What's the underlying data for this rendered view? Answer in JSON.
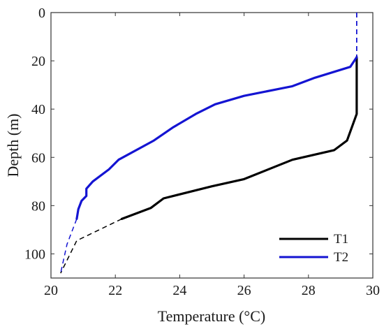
{
  "chart_data": {
    "type": "line",
    "xlabel": "Temperature (°C)",
    "ylabel": "Depth (m)",
    "xlim": [
      20,
      30
    ],
    "ylim": [
      0,
      110
    ],
    "y_reversed": true,
    "xticks": [
      20,
      22,
      24,
      26,
      28,
      30
    ],
    "yticks": [
      0,
      20,
      40,
      60,
      80,
      100
    ],
    "grid": false,
    "legend_position": "bottom-right",
    "series": [
      {
        "name": "T1",
        "color": "#000000",
        "points": [
          [
            29.5,
            18.5
          ],
          [
            29.5,
            42
          ],
          [
            29.2,
            53
          ],
          [
            28.8,
            57
          ],
          [
            27.5,
            61
          ],
          [
            26,
            69
          ],
          [
            25,
            72
          ],
          [
            23.5,
            77
          ],
          [
            23.1,
            81
          ],
          [
            22.2,
            85.5
          ]
        ],
        "extrapolated": [
          [
            22.2,
            85.5
          ],
          [
            20.8,
            94.5
          ],
          [
            20.3,
            108
          ]
        ]
      },
      {
        "name": "T2",
        "color": "#1414d2",
        "points": [
          [
            29.5,
            18.5
          ],
          [
            29.3,
            22.5
          ],
          [
            28.2,
            27
          ],
          [
            27.5,
            30.5
          ],
          [
            26,
            34.5
          ],
          [
            25.1,
            38
          ],
          [
            24.5,
            42
          ],
          [
            23.8,
            47.5
          ],
          [
            23.2,
            53
          ],
          [
            22.1,
            61
          ],
          [
            21.8,
            65
          ],
          [
            21.3,
            70
          ],
          [
            21.1,
            73
          ],
          [
            21.1,
            76
          ],
          [
            20.95,
            78
          ],
          [
            20.85,
            81.5
          ],
          [
            20.8,
            85.5
          ]
        ],
        "extrapolated": [
          [
            20.8,
            85.5
          ],
          [
            20.5,
            96
          ],
          [
            20.3,
            108
          ]
        ],
        "surface_segment": [
          [
            29.5,
            0
          ],
          [
            29.5,
            18.5
          ]
        ]
      }
    ]
  }
}
